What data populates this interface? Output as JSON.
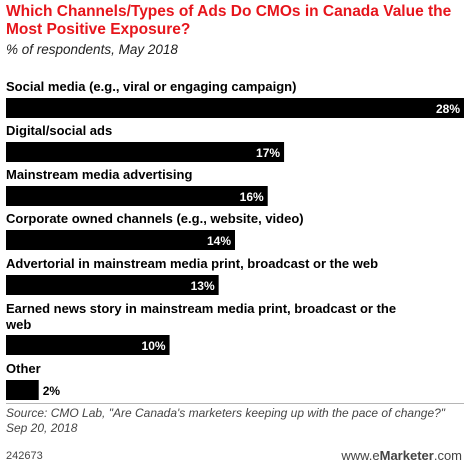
{
  "title": "Which Channels/Types of Ads Do CMOs in Canada Value the Most Positive Exposure?",
  "subtitle": "% of respondents, May 2018",
  "chart_data": {
    "type": "bar",
    "orientation": "horizontal",
    "categories": [
      [
        "Social media (e.g., viral or engaging campaign)"
      ],
      [
        "Digital/social ads"
      ],
      [
        "Mainstream media advertising"
      ],
      [
        "Corporate owned channels (e.g., website, video)"
      ],
      [
        "Advertorial in mainstream media print, broadcast or the web"
      ],
      [
        "Earned news story in mainstream media print, broadcast or the",
        "web"
      ],
      [
        "Other"
      ]
    ],
    "values": [
      28,
      17,
      16,
      14,
      13,
      10,
      2
    ],
    "value_labels": [
      "28%",
      "17%",
      "16%",
      "14%",
      "13%",
      "10%",
      "2%"
    ],
    "xlim": [
      0,
      28
    ],
    "grid": false,
    "bar_color": "#000000",
    "label_color_inside": "#ffffff",
    "label_color_outside": "#000000"
  },
  "source": "Source: CMO Lab, \"Are Canada's marketers keeping up with the pace of change?\" Sep 20, 2018",
  "chart_id": "242673",
  "brand": {
    "prefix": "www.",
    "e": "e",
    "rest": "Marketer",
    "suffix": ".com"
  }
}
